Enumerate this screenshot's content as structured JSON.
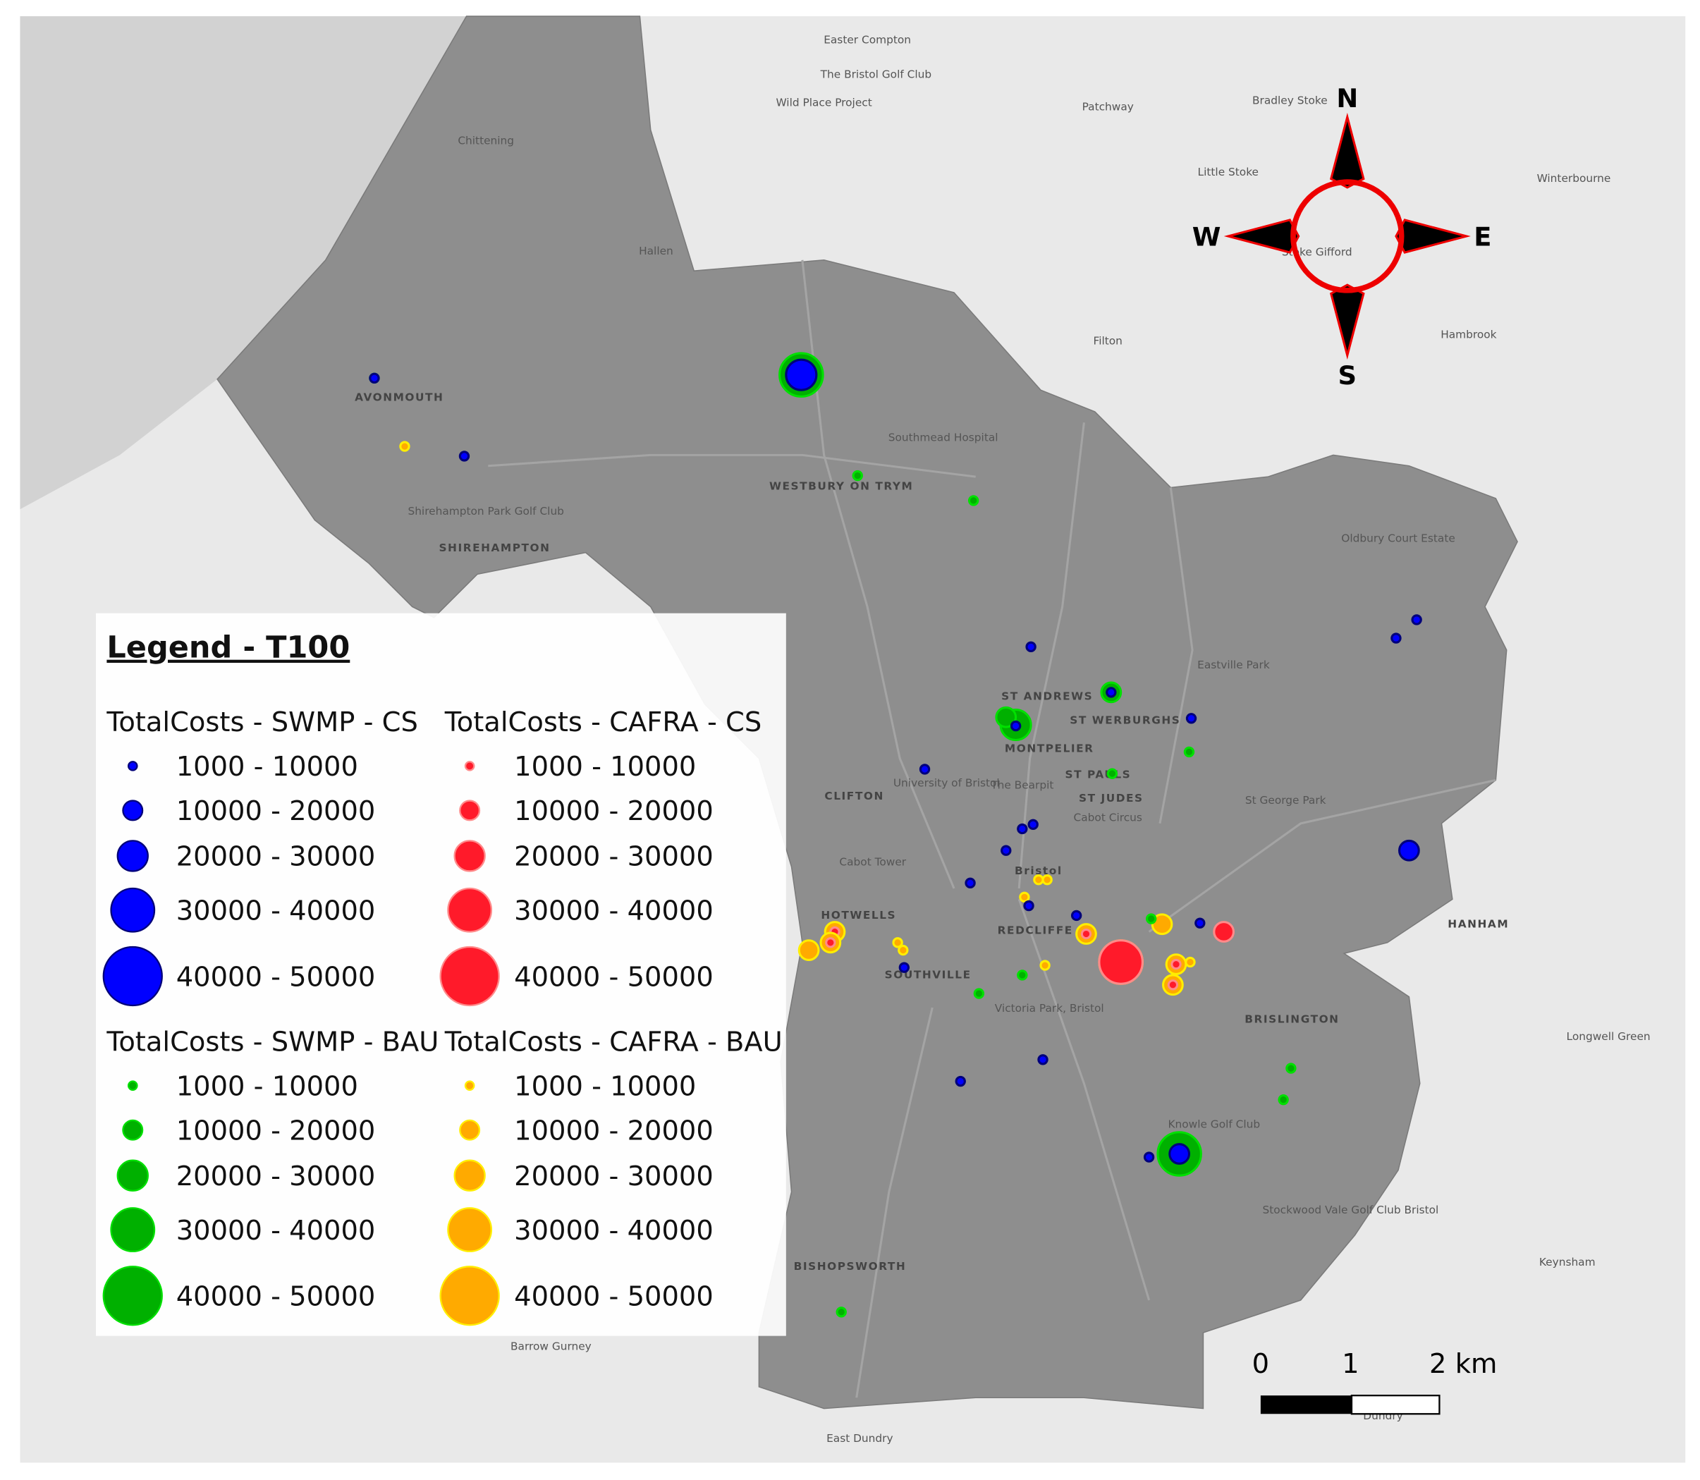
{
  "legend": {
    "title": "Legend - T100",
    "groups": [
      {
        "title": "TotalCosts - SWMP - CS",
        "fill": "#0000ff",
        "stroke": "#00007a",
        "classes": [
          "1000 - 10000",
          "10000 - 20000",
          "20000 - 30000",
          "30000 - 40000",
          "40000 - 50000"
        ]
      },
      {
        "title": "TotalCosts - CAFRA - CS",
        "fill": "#ff1a2a",
        "stroke": "#ff8a8a",
        "classes": [
          "1000 - 10000",
          "10000 - 20000",
          "20000 - 30000",
          "30000 - 40000",
          "40000 - 50000"
        ]
      },
      {
        "title": "TotalCosts - SWMP - BAU",
        "fill": "#00b000",
        "stroke": "#00e000",
        "classes": [
          "1000 - 10000",
          "10000 - 20000",
          "20000 - 30000",
          "30000 - 40000",
          "40000 - 50000"
        ]
      },
      {
        "title": "TotalCosts - CAFRA - BAU",
        "fill": "#ffaa00",
        "stroke": "#ffee00",
        "classes": [
          "1000 - 10000",
          "10000 - 20000",
          "20000 - 30000",
          "30000 - 40000",
          "40000 - 50000"
        ]
      }
    ]
  },
  "compass": {
    "north": "N",
    "south": "S",
    "west": "W",
    "east": "E"
  },
  "scale_bar": {
    "labels": [
      "0",
      "1",
      "2 km"
    ]
  },
  "places": [
    "Easter Compton",
    "The Bristol Golf Club",
    "Wild Place Project",
    "Patchway",
    "Bradley Stoke",
    "Chittening",
    "Little Stoke",
    "Winterbourne",
    "Hallen",
    "Stoke Gifford",
    "Filton",
    "Hambrook",
    "AVONMOUTH",
    "Southmead Hospital",
    "WESTBURY ON TRYM",
    "Shirehampton Park Golf Club",
    "SHIREHAMPTON",
    "Oldbury Court Estate",
    "Eastville Park",
    "ST ANDREWS",
    "ST WERBURGHS",
    "MONTPELIER",
    "CLIFTON",
    "ST PAULS",
    "ST JUDES",
    "Cabot Circus",
    "St George Park",
    "Cabot Tower",
    "Bristol",
    "HOTWELLS",
    "REDCLIFFE",
    "SOUTHVILLE",
    "HANHAM",
    "BRISLINGTON",
    "Victoria Park, Bristol",
    "Longwell Green",
    "Knowle Golf Club",
    "Stockwood Vale Golf Club Bristol",
    "Keynsham",
    "BISHOPSWORTH",
    "Barrow Gurney",
    "Dundry",
    "East Dundry",
    "University of Bristol",
    "The Bearpit"
  ]
}
